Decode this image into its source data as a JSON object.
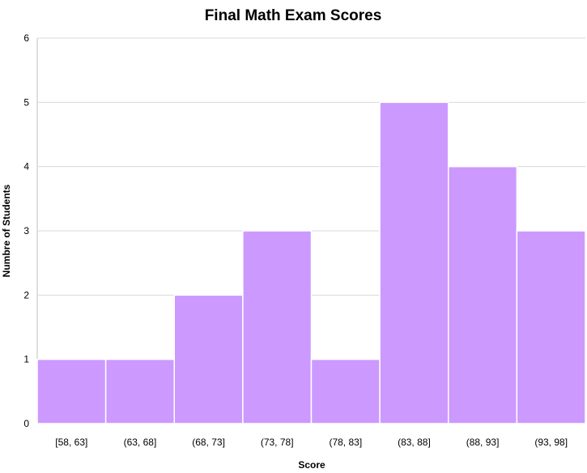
{
  "chart_data": {
    "type": "bar",
    "title": "Final Math Exam Scores",
    "xlabel": "Score",
    "ylabel": "Numbre of Students",
    "categories": [
      "[58, 63]",
      "(63, 68]",
      "(68, 73]",
      "(73, 78]",
      "(78, 83]",
      "(83, 88]",
      "(88, 93]",
      "(93, 98]"
    ],
    "values": [
      1,
      1,
      2,
      3,
      1,
      5,
      4,
      3
    ],
    "ylim": [
      0,
      6
    ],
    "yticks": [
      0,
      1,
      2,
      3,
      4,
      5,
      6
    ],
    "grid": true,
    "legend": "none",
    "bar_color": "#cc99ff",
    "bar_edge_color": "#ffffff"
  }
}
